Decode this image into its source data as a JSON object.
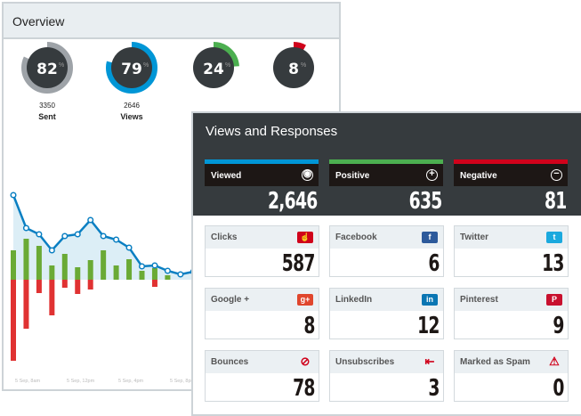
{
  "overview": {
    "title": "Overview",
    "donuts": [
      {
        "value": "82",
        "pct": 82,
        "unit": "%",
        "count": "3350",
        "label": "Sent",
        "color": "#9ea3a8"
      },
      {
        "value": "79",
        "pct": 79,
        "unit": "%",
        "count": "2646",
        "label": "Views",
        "color": "#0096d6"
      },
      {
        "value": "24",
        "pct": 24,
        "unit": "%",
        "color": "#4caf50"
      },
      {
        "value": "8",
        "pct": 8,
        "unit": "%",
        "color": "#d0021b"
      }
    ]
  },
  "chart_data": {
    "type": "bar+line",
    "x_tick_labels": [
      "5 Sep, 8am",
      "5 Sep, 12pm",
      "5 Sep, 4pm",
      "5 Sep, 8pm"
    ],
    "line": [
      95,
      58,
      51,
      33,
      49,
      51,
      67,
      49,
      45,
      36,
      15,
      16,
      10,
      6,
      9
    ],
    "positive": [
      33,
      46,
      38,
      16,
      29,
      14,
      22,
      33,
      16,
      23,
      10,
      13,
      5
    ],
    "negative": [
      91,
      55,
      15,
      40,
      9,
      16,
      11,
      0,
      0,
      0,
      0,
      8,
      0
    ],
    "colors": {
      "line": "#0a7fc2",
      "area": "#dceef6",
      "positive": "#6aaa35",
      "negative": "#e03232"
    }
  },
  "views": {
    "title": "Views and Responses",
    "summary": [
      {
        "label": "Viewed",
        "value": "2,646",
        "color": "#0096d6",
        "icon": "eye-icon",
        "glyph": "◉"
      },
      {
        "label": "Positive",
        "value": "635",
        "color": "#4caf50",
        "icon": "plus-circle-icon",
        "glyph": "+"
      },
      {
        "label": "Negative",
        "value": "81",
        "color": "#d0021b",
        "icon": "minus-circle-icon",
        "glyph": "−"
      }
    ],
    "cards": [
      {
        "label": "Clicks",
        "value": "587",
        "icon": "click-icon",
        "glyph": "☝",
        "color": "#d0021b"
      },
      {
        "label": "Facebook",
        "value": "6",
        "icon": "facebook-icon",
        "glyph": "f",
        "color": "#2d5a9b"
      },
      {
        "label": "Twitter",
        "value": "13",
        "icon": "twitter-icon",
        "glyph": "t",
        "color": "#1ba9de"
      },
      {
        "label": "Google +",
        "value": "8",
        "icon": "google-plus-icon",
        "glyph": "g+",
        "color": "#e0462d"
      },
      {
        "label": "LinkedIn",
        "value": "12",
        "icon": "linkedin-icon",
        "glyph": "in",
        "color": "#0a76b3"
      },
      {
        "label": "Pinterest",
        "value": "9",
        "icon": "pinterest-icon",
        "glyph": "P",
        "color": "#c8102e"
      },
      {
        "label": "Bounces",
        "value": "78",
        "icon": "bounce-icon",
        "glyph": "⊘",
        "color": "line"
      },
      {
        "label": "Unsubscribes",
        "value": "3",
        "icon": "unsubscribe-icon",
        "glyph": "⇤",
        "color": "line"
      },
      {
        "label": "Marked as Spam",
        "value": "0",
        "icon": "warning-icon",
        "glyph": "⚠",
        "color": "line"
      }
    ]
  }
}
